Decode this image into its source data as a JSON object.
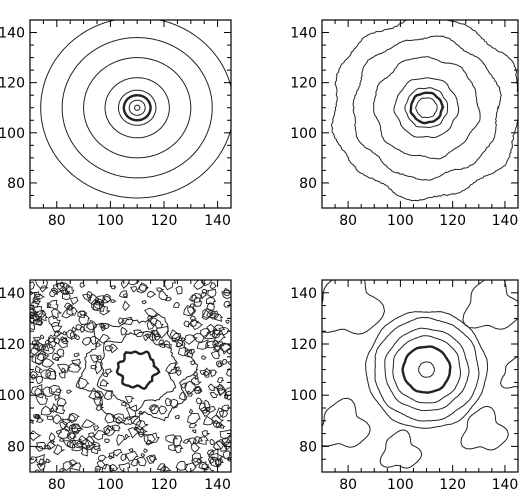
{
  "chart_data": [
    {
      "type": "contour",
      "title": "",
      "xlabel": "",
      "ylabel": "",
      "xlim": [
        70,
        145
      ],
      "ylim": [
        70,
        145
      ],
      "xticks": [
        80,
        100,
        120,
        140
      ],
      "yticks": [
        80,
        100,
        120,
        140
      ],
      "grid": false,
      "center": [
        110,
        110
      ],
      "contour_radii": [
        1,
        3,
        5,
        7,
        12,
        20,
        28,
        36
      ],
      "bold_radius": 5,
      "noise": 0,
      "style": "smooth"
    },
    {
      "type": "contour",
      "title": "",
      "xlabel": "",
      "ylabel": "",
      "xlim": [
        70,
        145
      ],
      "ylim": [
        70,
        145
      ],
      "xticks": [
        80,
        100,
        120,
        140
      ],
      "yticks": [
        80,
        100,
        120,
        140
      ],
      "grid": false,
      "center": [
        110,
        110
      ],
      "contour_radii": [
        4,
        6,
        8,
        12,
        20,
        28,
        36
      ],
      "bold_radius": 6,
      "noise": 0.1,
      "style": "slightly-noisy"
    },
    {
      "type": "contour",
      "title": "",
      "xlabel": "",
      "ylabel": "",
      "xlim": [
        70,
        145
      ],
      "ylim": [
        70,
        145
      ],
      "xticks": [
        80,
        100,
        120,
        140
      ],
      "yticks": [
        80,
        100,
        120,
        140
      ],
      "grid": false,
      "center": [
        110,
        110
      ],
      "contour_radii": [
        7,
        14,
        20
      ],
      "bold_radius": 7,
      "noise": 0.35,
      "style": "noisy"
    },
    {
      "type": "contour",
      "title": "",
      "xlabel": "",
      "ylabel": "",
      "xlim": [
        70,
        145
      ],
      "ylim": [
        70,
        145
      ],
      "xticks": [
        80,
        100,
        120,
        140
      ],
      "yticks": [
        80,
        100,
        120,
        140
      ],
      "grid": false,
      "center": [
        110,
        110
      ],
      "contour_radii": [
        3,
        9,
        13,
        16,
        20,
        23
      ],
      "bold_radius": 9,
      "noise": 0.05,
      "style": "smoothed"
    }
  ]
}
